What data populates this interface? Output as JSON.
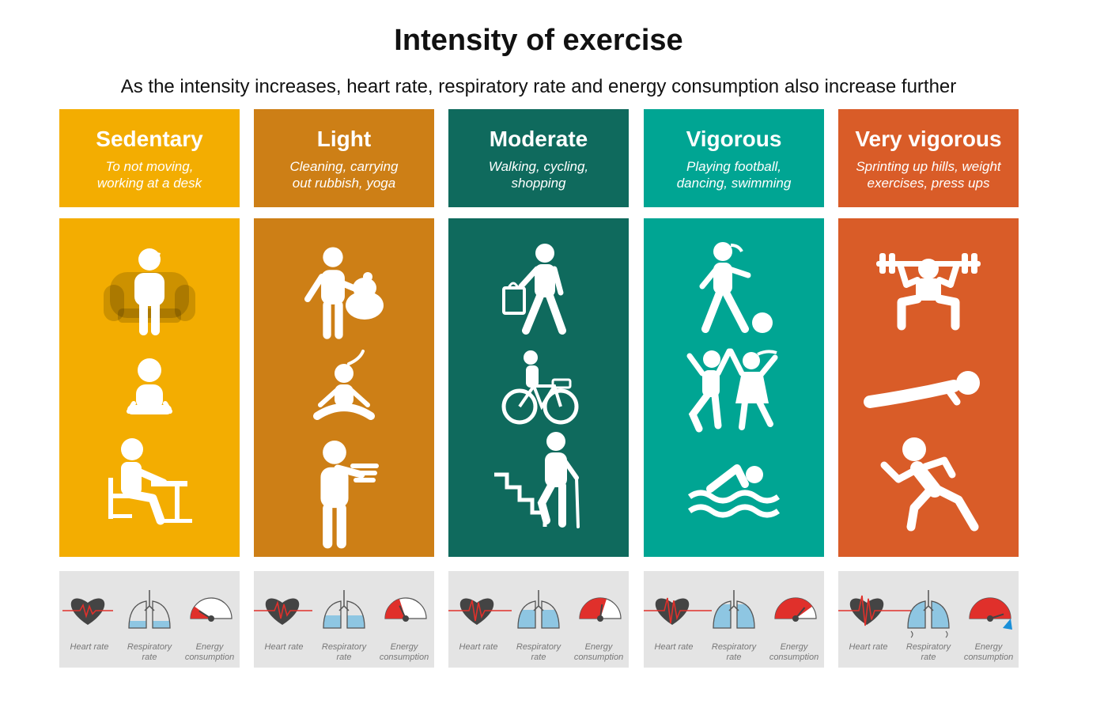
{
  "title": "Intensity of exercise",
  "subtitle": "As the intensity increases, heart rate, respiratory rate and energy consumption also increase further",
  "columns": [
    {
      "name": "Sedentary",
      "desc1": "To not moving,",
      "desc2": "working at a desk",
      "color": "#f3ad01",
      "body_color": "#f3ad01",
      "icons": [
        "sitting-in-armchair-icon",
        "cross-legged-sitting-icon",
        "sitting-at-desk-icon"
      ],
      "level": 1
    },
    {
      "name": "Light",
      "desc1": "Cleaning, carrying",
      "desc2": "out rubbish, yoga",
      "color": "#cd7f16",
      "body_color": "#cd7f16",
      "icons": [
        "carrying-rubbish-bag-icon",
        "yoga-pose-icon",
        "carrying-dishes-icon"
      ],
      "level": 2
    },
    {
      "name": "Moderate",
      "desc1": "Walking, cycling,",
      "desc2": "shopping",
      "color": "#0f6a5d",
      "body_color": "#0f6a5d",
      "icons": [
        "walking-with-bag-icon",
        "cycling-icon",
        "climbing-stairs-icon"
      ],
      "level": 3
    },
    {
      "name": "Vigorous",
      "desc1": "Playing football,",
      "desc2": "dancing, swimming",
      "color": "#00a593",
      "body_color": "#00a593",
      "icons": [
        "playing-football-icon",
        "dancing-icon",
        "swimming-icon"
      ],
      "level": 4
    },
    {
      "name": "Very vigorous",
      "desc1": "Sprinting up hills, weight",
      "desc2": "exercises, press ups",
      "color": "#d95c28",
      "body_color": "#d95c28",
      "icons": [
        "weight-lifting-icon",
        "press-up-icon",
        "sprinting-icon"
      ],
      "level": 5
    }
  ],
  "indicator_labels": {
    "heart": "Heart rate",
    "resp1": "Respiratory",
    "resp2": "rate",
    "energy1": "Energy",
    "energy2": "consumption"
  }
}
